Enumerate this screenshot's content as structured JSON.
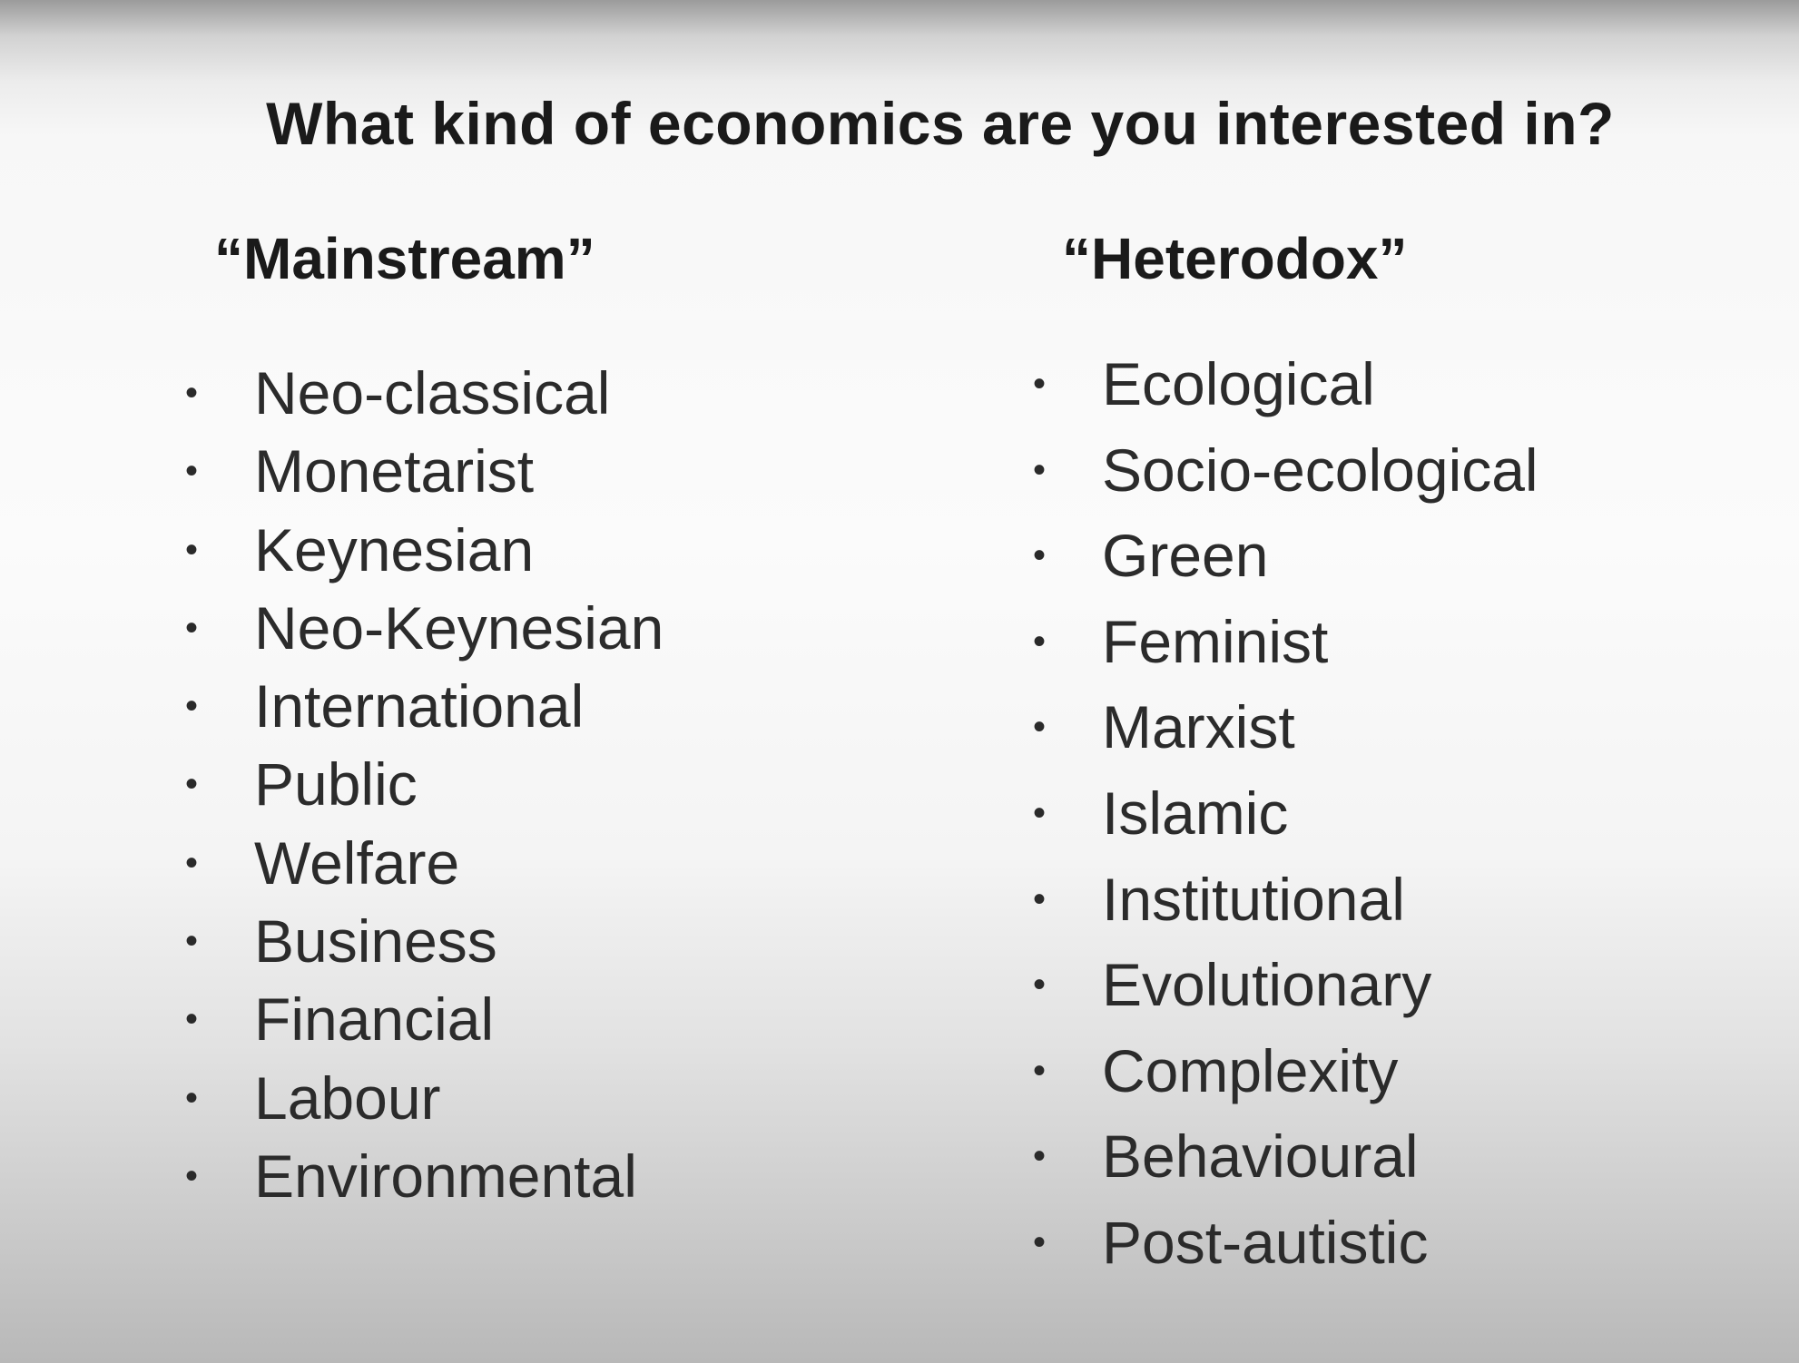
{
  "slide": {
    "title": "What kind of economics are you interested in?",
    "columns": [
      {
        "heading": "“Mainstream”",
        "items": [
          "Neo-classical",
          "Monetarist",
          "Keynesian",
          "Neo-Keynesian",
          "International",
          "Public",
          "Welfare",
          "Business",
          "Financial",
          "Labour",
          "Environmental"
        ]
      },
      {
        "heading": "“Heterodox”",
        "items": [
          "Ecological",
          "Socio-ecological",
          "Green",
          "Feminist",
          "Marxist",
          "Islamic",
          "Institutional",
          "Evolutionary",
          "Complexity",
          "Behavioural",
          "Post-autistic"
        ]
      }
    ],
    "bullet_glyph": "•"
  }
}
